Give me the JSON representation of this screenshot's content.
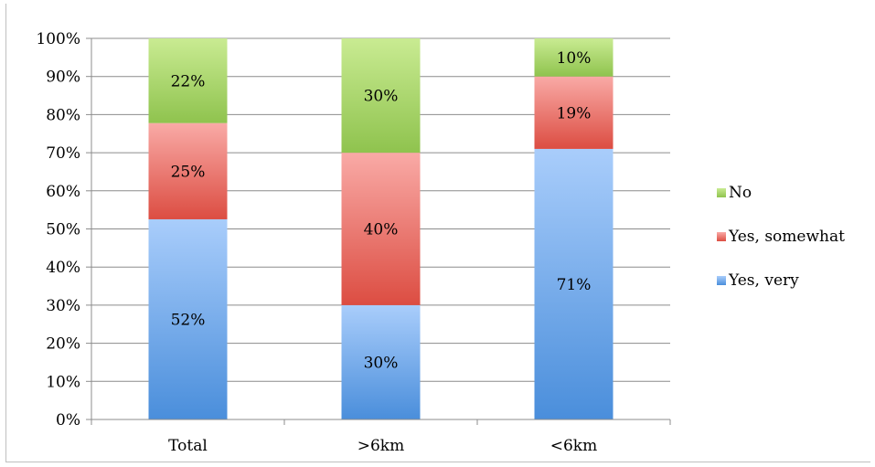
{
  "chart_data": {
    "type": "bar",
    "stacked": true,
    "percent_stacked": true,
    "categories": [
      "Total",
      ">6km",
      "<6km"
    ],
    "series": [
      {
        "name": "Yes, very",
        "values": [
          52,
          30,
          71
        ],
        "labels": [
          "52%",
          "30%",
          "71%"
        ],
        "color_top": "#a9cdfb",
        "color_bottom": "#4a8edb"
      },
      {
        "name": "Yes, somewhat",
        "values": [
          25,
          40,
          19
        ],
        "labels": [
          "25%",
          "40%",
          "19%"
        ],
        "color_top": "#f9aaa6",
        "color_bottom": "#dc4d42"
      },
      {
        "name": "No",
        "values": [
          22,
          30,
          10
        ],
        "labels": [
          "22%",
          "30%",
          "10%"
        ],
        "color_top": "#c9eb92",
        "color_bottom": "#8fc34e"
      }
    ],
    "y_ticks": [
      "0%",
      "10%",
      "20%",
      "30%",
      "40%",
      "50%",
      "60%",
      "70%",
      "80%",
      "90%",
      "100%"
    ],
    "ylim": [
      0,
      100
    ],
    "grid": true,
    "legend_position": "right",
    "legend_order": [
      "No",
      "Yes, somewhat",
      "Yes, very"
    ]
  }
}
